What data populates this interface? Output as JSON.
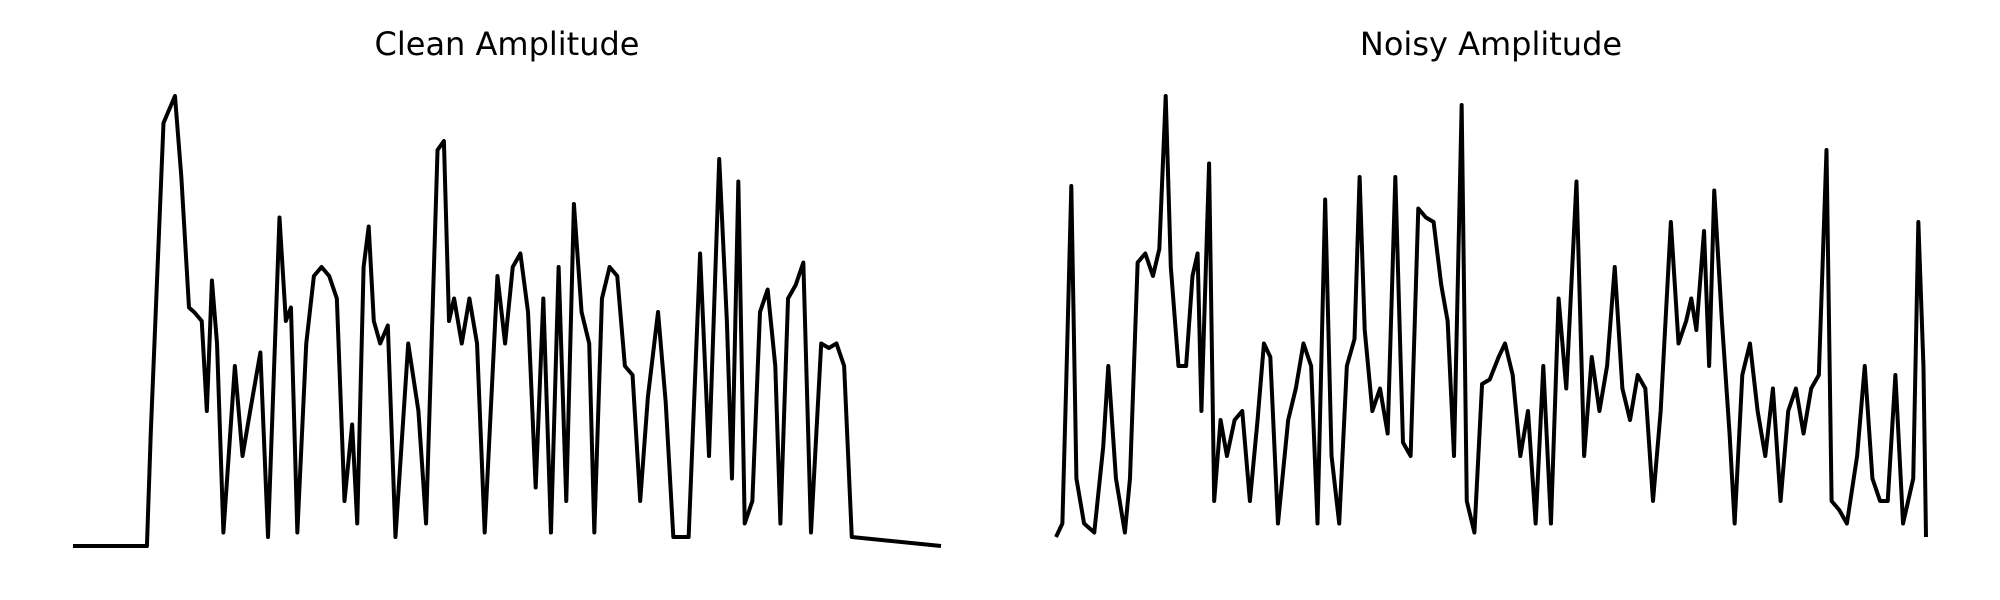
{
  "chart_data": [
    {
      "type": "line",
      "title": "Clean Amplitude",
      "color": "#000000",
      "xlim": [
        0,
        681
      ],
      "ylim": [
        0,
        1
      ],
      "x": [
        0,
        58,
        61,
        71,
        80,
        85,
        91,
        95,
        101,
        105,
        109,
        113,
        118,
        127,
        133,
        139,
        147,
        153,
        162,
        167,
        171,
        176,
        183,
        189,
        195,
        201,
        207,
        213,
        219,
        223,
        228,
        232,
        236,
        241,
        247,
        253,
        263,
        271,
        277,
        286,
        291,
        295,
        299,
        305,
        311,
        317,
        323,
        333,
        339,
        345,
        351,
        357,
        363,
        369,
        375,
        381,
        387,
        393,
        399,
        405,
        409,
        415,
        421,
        427,
        433,
        439,
        445,
        451,
        459,
        465,
        471,
        483,
        492,
        499,
        507,
        513,
        517,
        522,
        527,
        533,
        539,
        545,
        551,
        555,
        561,
        567,
        573,
        579,
        587,
        593,
        599,
        605,
        611,
        681
      ],
      "values": [
        0,
        0,
        0.25,
        0.94,
        1.0,
        0.82,
        0.53,
        0.52,
        0.5,
        0.3,
        0.59,
        0.45,
        0.03,
        0.4,
        0.2,
        0.3,
        0.43,
        0.02,
        0.73,
        0.5,
        0.53,
        0.03,
        0.45,
        0.6,
        0.62,
        0.6,
        0.55,
        0.1,
        0.27,
        0.05,
        0.62,
        0.71,
        0.5,
        0.45,
        0.49,
        0.02,
        0.45,
        0.3,
        0.05,
        0.88,
        0.9,
        0.5,
        0.55,
        0.45,
        0.55,
        0.45,
        0.03,
        0.6,
        0.45,
        0.62,
        0.65,
        0.52,
        0.13,
        0.55,
        0.03,
        0.62,
        0.1,
        0.76,
        0.52,
        0.45,
        0.03,
        0.55,
        0.62,
        0.6,
        0.4,
        0.38,
        0.1,
        0.33,
        0.52,
        0.32,
        0.02,
        0.02,
        0.65,
        0.2,
        0.86,
        0.5,
        0.15,
        0.81,
        0.05,
        0.1,
        0.52,
        0.57,
        0.4,
        0.05,
        0.55,
        0.58,
        0.63,
        0.03,
        0.45,
        0.44,
        0.45,
        0.4,
        0.02,
        0
      ]
    },
    {
      "type": "line",
      "title": "Noisy Amplitude",
      "color": "#000000",
      "xlim": [
        0,
        682
      ],
      "ylim": [
        0,
        1
      ],
      "x": [
        0,
        5,
        8,
        12,
        16,
        22,
        30,
        37,
        41,
        47,
        54,
        58,
        64,
        70,
        76,
        81,
        86,
        90,
        96,
        102,
        107,
        111,
        114,
        120,
        124,
        129,
        134,
        140,
        146,
        152,
        158,
        163,
        168,
        174,
        182,
        188,
        194,
        200,
        205,
        211,
        216,
        222,
        228,
        234,
        238,
        242,
        248,
        254,
        260,
        266,
        272,
        278,
        284,
        290,
        296,
        302,
        307,
        312,
        318,
        322,
        328,
        334,
        340,
        347,
        352,
        358,
        364,
        370,
        376,
        382,
        388,
        394,
        400,
        408,
        414,
        420,
        426,
        432,
        438,
        444,
        450,
        456,
        462,
        468,
        474,
        482,
        488,
        494,
        498,
        502,
        508,
        512,
        516,
        522,
        528,
        532,
        538,
        544,
        550,
        556,
        562,
        568,
        574,
        580,
        586,
        592,
        598,
        604,
        608,
        614,
        620,
        628,
        634,
        640,
        646,
        652,
        658,
        664,
        672,
        676,
        680,
        682
      ],
      "values": [
        0.02,
        0.05,
        0.36,
        0.8,
        0.15,
        0.05,
        0.03,
        0.22,
        0.4,
        0.15,
        0.03,
        0.15,
        0.63,
        0.65,
        0.6,
        0.66,
        1.0,
        0.62,
        0.4,
        0.4,
        0.6,
        0.65,
        0.3,
        0.85,
        0.1,
        0.28,
        0.2,
        0.28,
        0.3,
        0.1,
        0.28,
        0.45,
        0.42,
        0.05,
        0.28,
        0.35,
        0.45,
        0.4,
        0.05,
        0.77,
        0.2,
        0.05,
        0.4,
        0.46,
        0.82,
        0.48,
        0.3,
        0.35,
        0.25,
        0.82,
        0.23,
        0.2,
        0.75,
        0.73,
        0.72,
        0.58,
        0.5,
        0.2,
        0.98,
        0.1,
        0.03,
        0.36,
        0.37,
        0.42,
        0.45,
        0.38,
        0.2,
        0.3,
        0.05,
        0.4,
        0.05,
        0.55,
        0.35,
        0.81,
        0.2,
        0.42,
        0.3,
        0.4,
        0.62,
        0.35,
        0.28,
        0.38,
        0.35,
        0.1,
        0.3,
        0.72,
        0.45,
        0.5,
        0.55,
        0.48,
        0.7,
        0.4,
        0.79,
        0.5,
        0.25,
        0.05,
        0.38,
        0.45,
        0.3,
        0.2,
        0.35,
        0.1,
        0.3,
        0.35,
        0.25,
        0.35,
        0.38,
        0.88,
        0.1,
        0.08,
        0.05,
        0.2,
        0.4,
        0.15,
        0.1,
        0.1,
        0.38,
        0.05,
        0.15,
        0.72,
        0.4,
        0.02
      ]
    }
  ]
}
